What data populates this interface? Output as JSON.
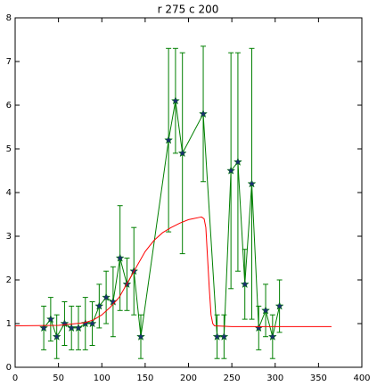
{
  "chart_data": {
    "type": "line",
    "title": "r 275 c 200",
    "xlim": [
      0,
      400
    ],
    "xticks": [
      0,
      50,
      100,
      150,
      200,
      250,
      300,
      350,
      400
    ],
    "ylim": [
      0,
      8
    ],
    "yticks": [
      0,
      1,
      2,
      3,
      4,
      5,
      6,
      7,
      8
    ],
    "series": [
      {
        "color": "#007f00",
        "marker_color": "#1a2f6e",
        "x": [
          33,
          41,
          48,
          57,
          65,
          73,
          81,
          89,
          97,
          105,
          113,
          121,
          129,
          137,
          145,
          177,
          185,
          193,
          217,
          233,
          241,
          249,
          257,
          265,
          273,
          281,
          289,
          297,
          305
        ],
        "values": [
          0.9,
          1.1,
          0.7,
          1.0,
          0.9,
          0.9,
          1.0,
          1.0,
          1.4,
          1.6,
          1.5,
          2.5,
          1.9,
          2.2,
          0.7,
          5.2,
          6.1,
          4.9,
          5.8,
          0.7,
          0.7,
          4.5,
          4.7,
          1.9,
          4.2,
          0.9,
          1.3,
          0.7,
          1.4
        ],
        "errors": [
          0.5,
          0.5,
          0.5,
          0.5,
          0.5,
          0.5,
          0.6,
          0.5,
          0.5,
          0.6,
          0.8,
          1.2,
          0.6,
          1.0,
          0.5,
          2.1,
          1.2,
          2.3,
          1.55,
          0.5,
          0.5,
          2.7,
          2.5,
          0.8,
          3.1,
          0.5,
          0.6,
          0.5,
          0.6
        ]
      },
      {
        "color": "#ff0000",
        "x": [
          0,
          50,
          80,
          90,
          100,
          110,
          120,
          130,
          140,
          150,
          160,
          170,
          180,
          190,
          200,
          205,
          212,
          215,
          218,
          220,
          222,
          224,
          226,
          228,
          230,
          250,
          300,
          365
        ],
        "values": [
          0.95,
          0.96,
          1.02,
          1.08,
          1.2,
          1.38,
          1.6,
          1.95,
          2.3,
          2.65,
          2.9,
          3.08,
          3.2,
          3.3,
          3.38,
          3.4,
          3.43,
          3.44,
          3.4,
          3.2,
          2.5,
          1.8,
          1.2,
          1.0,
          0.95,
          0.93,
          0.93,
          0.93
        ]
      }
    ]
  }
}
